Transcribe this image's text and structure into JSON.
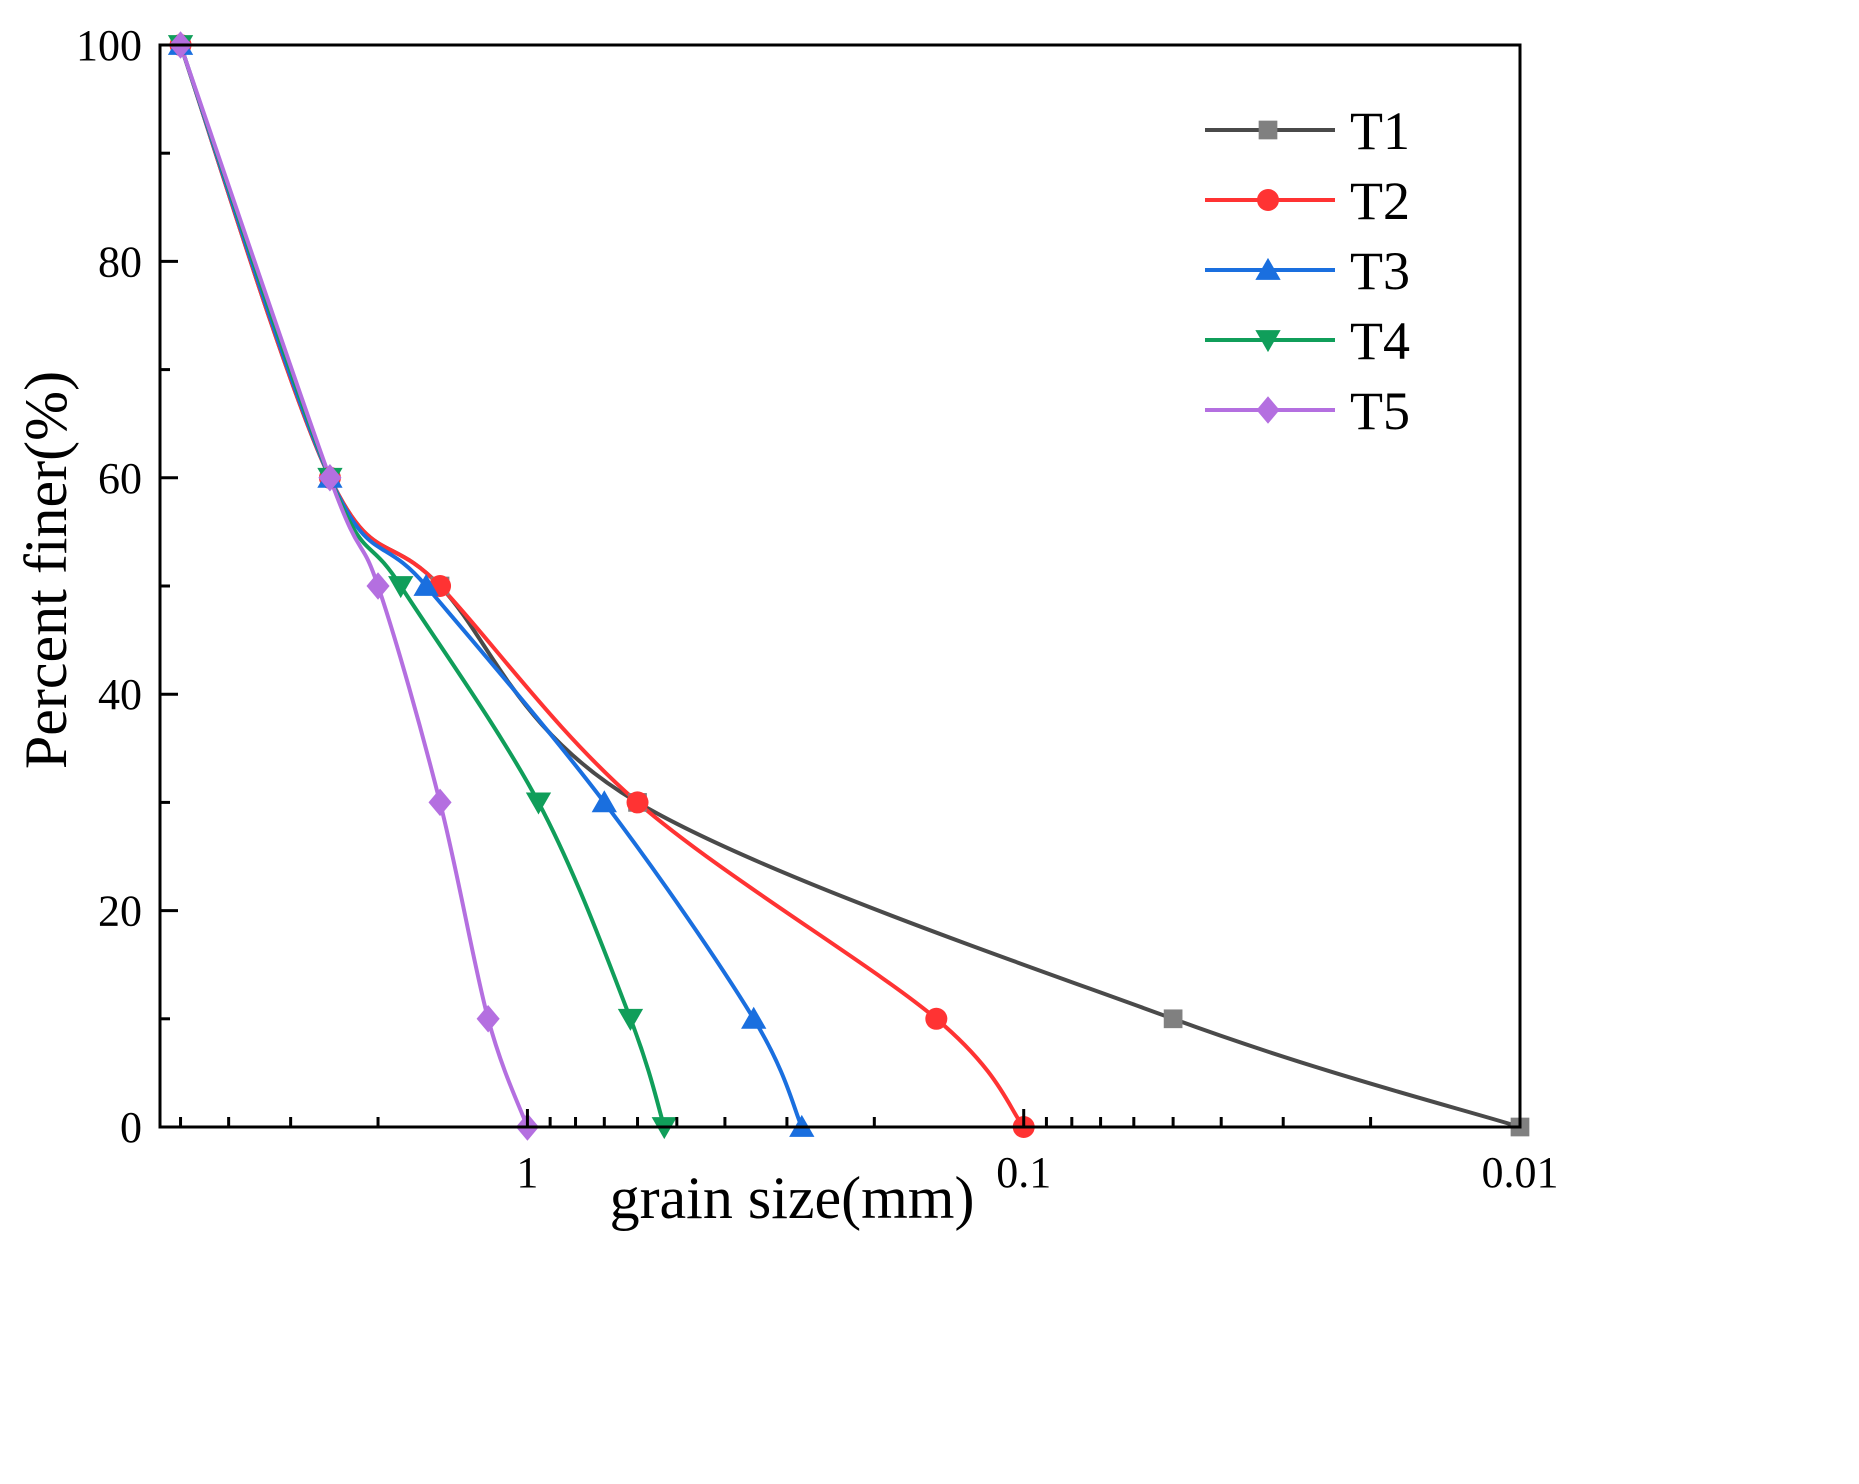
{
  "chart_data": {
    "type": "line",
    "title": "",
    "xlabel": "grain size(mm)",
    "ylabel": "Percent finer(%)",
    "x_scale": "log",
    "x_reversed": true,
    "xlim": [
      5.5,
      0.01
    ],
    "ylim": [
      0,
      100
    ],
    "x_ticks": [
      1,
      0.1,
      0.01
    ],
    "x_tick_labels": [
      "1",
      "0.1",
      "0.01"
    ],
    "y_ticks": [
      0,
      20,
      40,
      60,
      80,
      100
    ],
    "y_tick_labels": [
      "0",
      "20",
      "40",
      "60",
      "80",
      "100"
    ],
    "legend_position": "top-right",
    "series": [
      {
        "name": "T1",
        "color": "#4a4a4a",
        "marker": "square",
        "marker_color": "#808080",
        "x": [
          5,
          2.5,
          1.5,
          0.6,
          0.05,
          0.01
        ],
        "y": [
          100,
          60,
          50,
          30,
          10,
          0
        ]
      },
      {
        "name": "T2",
        "color": "#ff3333",
        "marker": "circle",
        "x": [
          5,
          2.5,
          1.5,
          0.6,
          0.15,
          0.1
        ],
        "y": [
          100,
          60,
          50,
          30,
          10,
          0
        ]
      },
      {
        "name": "T3",
        "color": "#1a6fdf",
        "marker": "triangle-up",
        "x": [
          5,
          2.5,
          1.6,
          0.7,
          0.35,
          0.28
        ],
        "y": [
          100,
          60,
          50,
          30,
          10,
          0
        ]
      },
      {
        "name": "T4",
        "color": "#109e5a",
        "marker": "triangle-down",
        "x": [
          5,
          2.5,
          1.8,
          0.95,
          0.62,
          0.53
        ],
        "y": [
          100,
          60,
          50,
          30,
          10,
          0
        ]
      },
      {
        "name": "T5",
        "color": "#b46fe0",
        "marker": "diamond",
        "x": [
          5,
          2.5,
          2.0,
          1.5,
          1.2,
          1.0
        ],
        "y": [
          100,
          60,
          50,
          30,
          10,
          0
        ]
      }
    ]
  }
}
